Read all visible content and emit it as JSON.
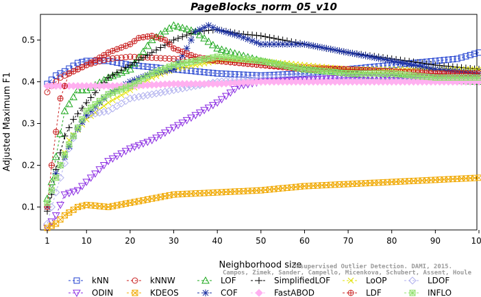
{
  "chart_data": {
    "type": "line",
    "title": "PageBlocks_norm_05_v10",
    "xlabel": "Neighborhood size",
    "ylabel": "Adjusted Maximum F1",
    "xlim": [
      1,
      100
    ],
    "ylim": [
      0.05,
      0.55
    ],
    "xticks": [
      1,
      10,
      20,
      30,
      40,
      50,
      60,
      70,
      80,
      90,
      100
    ],
    "yticks": [
      0.1,
      0.2,
      0.3,
      0.4,
      0.5
    ],
    "legend_position": "bottom",
    "credit": [
      "Unsupervised Outlier Detection. DAMI, 2015.",
      "Campos, Zimek, Sander, Campello, Micenkova, Schubert, Assent, Houle"
    ],
    "series": [
      {
        "name": "kNN",
        "color": "#1f3fcf",
        "marker": "square",
        "x": [
          1,
          3,
          5,
          8,
          10,
          15,
          20,
          30,
          40,
          50,
          60,
          70,
          80,
          90,
          95,
          100
        ],
        "y": [
          0.395,
          0.415,
          0.425,
          0.445,
          0.45,
          0.45,
          0.44,
          0.43,
          0.42,
          0.415,
          0.42,
          0.43,
          0.44,
          0.45,
          0.455,
          0.47
        ]
      },
      {
        "name": "kNNW",
        "color": "#c81e1e",
        "marker": "circle",
        "x": [
          1,
          2,
          4,
          6,
          10,
          15,
          20,
          30,
          40,
          50,
          60,
          70,
          80,
          90,
          100
        ],
        "y": [
          0.375,
          0.39,
          0.41,
          0.42,
          0.44,
          0.455,
          0.46,
          0.455,
          0.45,
          0.44,
          0.435,
          0.43,
          0.425,
          0.425,
          0.42
        ]
      },
      {
        "name": "LOF",
        "color": "#19a619",
        "marker": "triangle-up",
        "x": [
          1,
          2,
          3,
          5,
          8,
          10,
          15,
          20,
          25,
          30,
          35,
          40,
          50,
          60,
          70,
          80,
          90,
          100
        ],
        "y": [
          0.12,
          0.16,
          0.22,
          0.33,
          0.38,
          0.38,
          0.41,
          0.43,
          0.5,
          0.535,
          0.52,
          0.48,
          0.45,
          0.43,
          0.42,
          0.41,
          0.405,
          0.4
        ]
      },
      {
        "name": "SimplifiedLOF",
        "color": "#000000",
        "marker": "plus",
        "x": [
          1,
          2,
          3,
          5,
          7,
          10,
          15,
          20,
          25,
          30,
          35,
          40,
          45,
          50,
          60,
          70,
          80,
          90,
          100
        ],
        "y": [
          0.09,
          0.13,
          0.19,
          0.27,
          0.31,
          0.35,
          0.41,
          0.44,
          0.47,
          0.5,
          0.52,
          0.525,
          0.515,
          0.51,
          0.49,
          0.47,
          0.455,
          0.44,
          0.43
        ]
      },
      {
        "name": "LoOP",
        "color": "#e0e000",
        "marker": "x",
        "x": [
          1,
          2,
          4,
          6,
          10,
          15,
          20,
          25,
          30,
          40,
          50,
          60,
          70,
          80,
          90,
          100
        ],
        "y": [
          0.1,
          0.14,
          0.2,
          0.26,
          0.31,
          0.35,
          0.38,
          0.41,
          0.43,
          0.45,
          0.45,
          0.44,
          0.43,
          0.43,
          0.43,
          0.43
        ]
      },
      {
        "name": "LDOF",
        "color": "#b0b0ee",
        "marker": "diamond",
        "x": [
          1,
          2,
          4,
          6,
          8,
          10,
          15,
          20,
          25,
          30,
          40,
          50,
          60,
          70,
          80,
          90,
          100
        ],
        "y": [
          0.06,
          0.1,
          0.17,
          0.24,
          0.29,
          0.32,
          0.33,
          0.36,
          0.37,
          0.38,
          0.4,
          0.41,
          0.41,
          0.41,
          0.41,
          0.41,
          0.41
        ]
      },
      {
        "name": "ODIN",
        "color": "#8a2be2",
        "marker": "triangle-down",
        "x": [
          1,
          3,
          5,
          8,
          10,
          15,
          20,
          25,
          30,
          35,
          40,
          45,
          50,
          60,
          70,
          80,
          90,
          100
        ],
        "y": [
          0.05,
          0.08,
          0.13,
          0.14,
          0.16,
          0.21,
          0.24,
          0.26,
          0.29,
          0.32,
          0.35,
          0.39,
          0.4,
          0.405,
          0.41,
          0.41,
          0.41,
          0.41
        ]
      },
      {
        "name": "KDEOS",
        "color": "#f0a800",
        "marker": "x-square",
        "x": [
          1,
          3,
          5,
          8,
          10,
          15,
          20,
          25,
          30,
          40,
          50,
          60,
          70,
          80,
          90,
          100
        ],
        "y": [
          0.05,
          0.06,
          0.08,
          0.1,
          0.105,
          0.1,
          0.11,
          0.12,
          0.13,
          0.135,
          0.14,
          0.15,
          0.155,
          0.16,
          0.165,
          0.17
        ]
      },
      {
        "name": "COF",
        "color": "#1a2fa0",
        "marker": "asterisk",
        "x": [
          1,
          2,
          3,
          5,
          7,
          10,
          15,
          20,
          25,
          30,
          33,
          35,
          38,
          40,
          45,
          50,
          55,
          60,
          70,
          80,
          90,
          100
        ],
        "y": [
          0.1,
          0.14,
          0.18,
          0.22,
          0.27,
          0.32,
          0.37,
          0.4,
          0.42,
          0.43,
          0.48,
          0.52,
          0.535,
          0.525,
          0.51,
          0.49,
          0.49,
          0.49,
          0.47,
          0.45,
          0.43,
          0.42
        ]
      },
      {
        "name": "FastABOD",
        "color": "#ffb0f0",
        "marker": "diamond-filled",
        "x": [
          1,
          5,
          10,
          20,
          30,
          40,
          50,
          60,
          70,
          80,
          90,
          100
        ],
        "y": [
          0.39,
          0.39,
          0.39,
          0.39,
          0.395,
          0.395,
          0.4,
          0.4,
          0.4,
          0.4,
          0.4,
          0.4
        ]
      },
      {
        "name": "LDF",
        "color": "#c81e1e",
        "marker": "circle-plus",
        "x": [
          1,
          2,
          3,
          4,
          6,
          10,
          15,
          20,
          22,
          25,
          28,
          30,
          35,
          40,
          50,
          60,
          70,
          80,
          90,
          100
        ],
        "y": [
          0.1,
          0.2,
          0.28,
          0.36,
          0.42,
          0.44,
          0.47,
          0.49,
          0.505,
          0.51,
          0.5,
          0.48,
          0.46,
          0.45,
          0.44,
          0.43,
          0.43,
          0.425,
          0.42,
          0.42
        ]
      },
      {
        "name": "INFLO",
        "color": "#8fe06a",
        "marker": "star-square",
        "x": [
          1,
          2,
          4,
          6,
          8,
          10,
          15,
          20,
          25,
          30,
          40,
          50,
          60,
          70,
          80,
          90,
          100
        ],
        "y": [
          0.11,
          0.14,
          0.2,
          0.25,
          0.29,
          0.33,
          0.37,
          0.39,
          0.42,
          0.44,
          0.46,
          0.45,
          0.43,
          0.42,
          0.42,
          0.41,
          0.41
        ]
      }
    ]
  }
}
